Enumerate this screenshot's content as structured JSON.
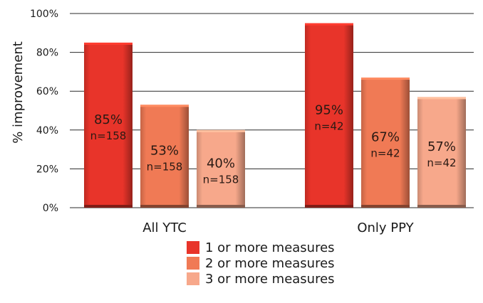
{
  "chart_data": {
    "type": "bar",
    "title": "",
    "xlabel": "",
    "ylabel": "% improvement",
    "ylim": [
      0,
      100
    ],
    "yticks": [
      "0%",
      "20%",
      "40%",
      "60%",
      "80%",
      "100%"
    ],
    "grid": true,
    "legend_placement": "bottom-center",
    "categories": [
      "All YTC",
      "Only PPY"
    ],
    "series": [
      {
        "name": "1 or more measures",
        "values": [
          85,
          95
        ],
        "labels": [
          "85%",
          "95%"
        ],
        "n_labels": [
          "n=158",
          "n=42"
        ],
        "color": "#e8342a"
      },
      {
        "name": "2 or more measures",
        "values": [
          53,
          67
        ],
        "labels": [
          "53%",
          "67%"
        ],
        "n_labels": [
          "n=158",
          "n=42"
        ],
        "color": "#f07a55"
      },
      {
        "name": "3 or more measures",
        "values": [
          40,
          57
        ],
        "labels": [
          "40%",
          "57%"
        ],
        "n_labels": [
          "n=158",
          "n=42"
        ],
        "color": "#f7a88b"
      }
    ]
  }
}
